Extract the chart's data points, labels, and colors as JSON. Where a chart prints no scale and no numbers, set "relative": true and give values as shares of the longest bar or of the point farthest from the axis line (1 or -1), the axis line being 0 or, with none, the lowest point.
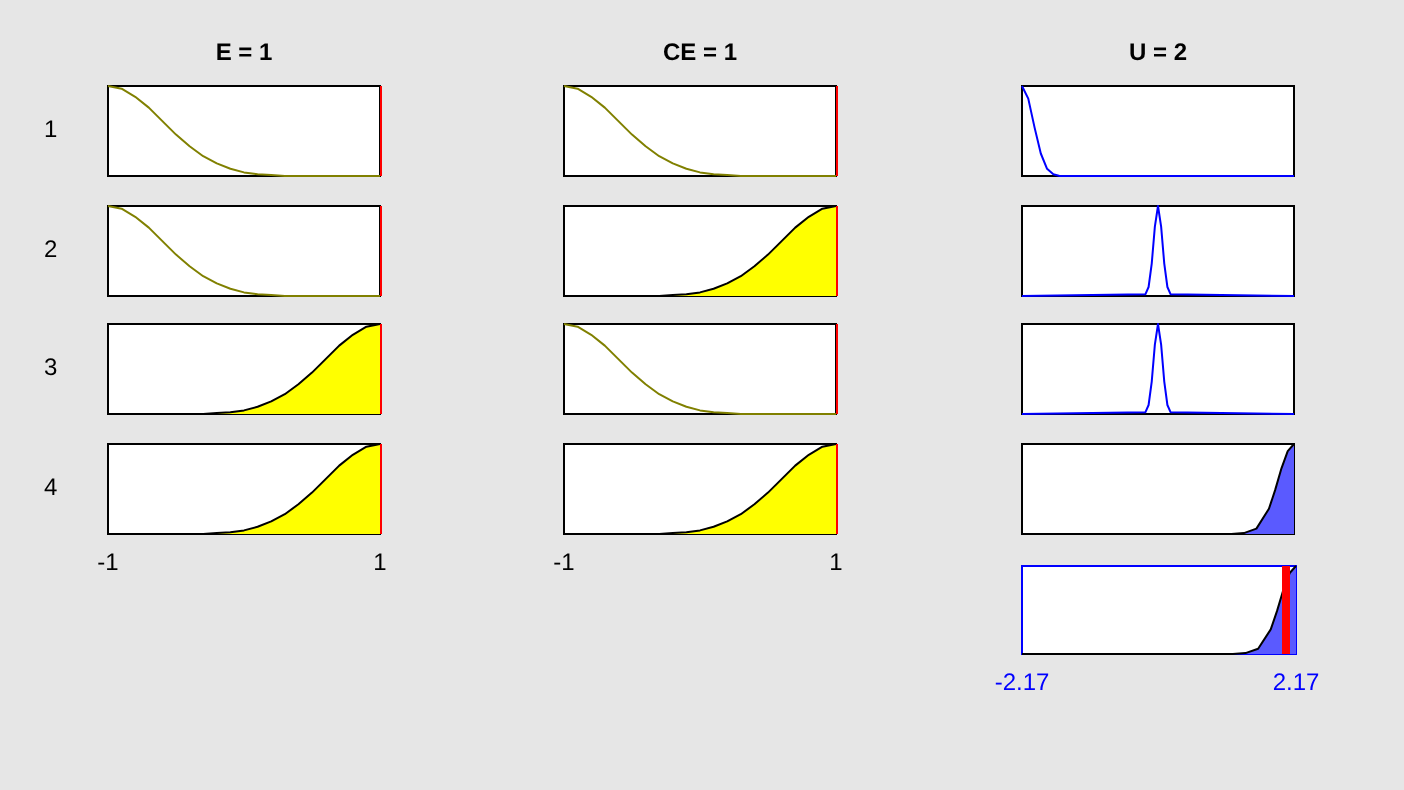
{
  "chart_data": [
    {
      "type": "line",
      "title": "E = 1",
      "ylabel": "1",
      "relative": true,
      "x": [
        -1,
        -0.9,
        -0.8,
        -0.7,
        -0.6,
        -0.5,
        -0.4,
        -0.3,
        -0.2,
        -0.1,
        0,
        0.1,
        0.2,
        0.3,
        0.4,
        0.5,
        0.6,
        0.7,
        0.8,
        0.9,
        1
      ],
      "xlim": [
        -1,
        1
      ],
      "tick_labels": false,
      "ref_lines": [
        {
          "axis": "x",
          "value": 1,
          "color": "#ff0000"
        }
      ],
      "series": [
        {
          "color": "#808000",
          "values": [
            1,
            0.97,
            0.88,
            0.76,
            0.61,
            0.46,
            0.33,
            0.22,
            0.14,
            0.08,
            0.04,
            0.02,
            0.01,
            0,
            0,
            0,
            0,
            0,
            0,
            0,
            0
          ]
        }
      ]
    },
    {
      "type": "line",
      "title": "CE = 1",
      "relative": true,
      "x": [
        -1,
        -0.9,
        -0.8,
        -0.7,
        -0.6,
        -0.5,
        -0.4,
        -0.3,
        -0.2,
        -0.1,
        0,
        0.1,
        0.2,
        0.3,
        0.4,
        0.5,
        0.6,
        0.7,
        0.8,
        0.9,
        1
      ],
      "xlim": [
        -1,
        1
      ],
      "tick_labels": false,
      "ref_lines": [
        {
          "axis": "x",
          "value": 1,
          "color": "#ff0000"
        }
      ],
      "series": [
        {
          "color": "#808000",
          "values": [
            1,
            0.97,
            0.88,
            0.76,
            0.61,
            0.46,
            0.33,
            0.22,
            0.14,
            0.08,
            0.04,
            0.02,
            0.01,
            0,
            0,
            0,
            0,
            0,
            0,
            0,
            0
          ]
        }
      ]
    },
    {
      "type": "line",
      "title": "U = 2",
      "relative": true,
      "x": [
        -2.17,
        -2.07,
        -1.97,
        -1.87,
        -1.77,
        -1.67,
        -1.57,
        2.17
      ],
      "xlim": [
        -2.17,
        2.17
      ],
      "tick_labels": false,
      "series": [
        {
          "color": "#0000ff",
          "values": [
            1,
            0.86,
            0.54,
            0.25,
            0.08,
            0.02,
            0,
            0
          ]
        }
      ]
    },
    {
      "type": "line",
      "ylabel": "2",
      "relative": true,
      "x": [
        -1,
        -0.9,
        -0.8,
        -0.7,
        -0.6,
        -0.5,
        -0.4,
        -0.3,
        -0.2,
        -0.1,
        0,
        0.1,
        0.2,
        0.3,
        0.4,
        0.5,
        0.6,
        0.7,
        0.8,
        0.9,
        1
      ],
      "xlim": [
        -1,
        1
      ],
      "tick_labels": false,
      "ref_lines": [
        {
          "axis": "x",
          "value": 1,
          "color": "#ff0000"
        }
      ],
      "series": [
        {
          "color": "#808000",
          "values": [
            1,
            0.97,
            0.88,
            0.76,
            0.61,
            0.46,
            0.33,
            0.22,
            0.14,
            0.08,
            0.04,
            0.02,
            0.01,
            0,
            0,
            0,
            0,
            0,
            0,
            0,
            0
          ]
        }
      ]
    },
    {
      "type": "area",
      "relative": true,
      "x": [
        -1,
        -0.9,
        -0.8,
        -0.7,
        -0.6,
        -0.5,
        -0.4,
        -0.3,
        -0.2,
        -0.1,
        0,
        0.1,
        0.2,
        0.3,
        0.4,
        0.5,
        0.6,
        0.7,
        0.8,
        0.9,
        1
      ],
      "xlim": [
        -1,
        1
      ],
      "tick_labels": false,
      "ref_lines": [
        {
          "axis": "x",
          "value": 1,
          "color": "#ff0000"
        }
      ],
      "series": [
        {
          "color": "#ffff00",
          "values": [
            0,
            0,
            0,
            0,
            0,
            0,
            0,
            0,
            0.01,
            0.02,
            0.04,
            0.08,
            0.14,
            0.22,
            0.33,
            0.46,
            0.61,
            0.76,
            0.88,
            0.97,
            1
          ]
        }
      ]
    },
    {
      "type": "line",
      "relative": true,
      "x": [
        -2.17,
        -0.2,
        -0.15,
        -0.1,
        -0.05,
        0,
        0.05,
        0.1,
        0.15,
        0.2,
        2.17
      ],
      "xlim": [
        -2.17,
        2.17
      ],
      "tick_labels": false,
      "series": [
        {
          "color": "#0000ff",
          "values": [
            0,
            0.02,
            0.1,
            0.36,
            0.77,
            1,
            0.77,
            0.36,
            0.1,
            0.02,
            0
          ]
        }
      ]
    },
    {
      "type": "area",
      "ylabel": "3",
      "relative": true,
      "x": [
        -1,
        -0.9,
        -0.8,
        -0.7,
        -0.6,
        -0.5,
        -0.4,
        -0.3,
        -0.2,
        -0.1,
        0,
        0.1,
        0.2,
        0.3,
        0.4,
        0.5,
        0.6,
        0.7,
        0.8,
        0.9,
        1
      ],
      "xlim": [
        -1,
        1
      ],
      "tick_labels": false,
      "ref_lines": [
        {
          "axis": "x",
          "value": 1,
          "color": "#ff0000"
        }
      ],
      "series": [
        {
          "color": "#ffff00",
          "values": [
            0,
            0,
            0,
            0,
            0,
            0,
            0,
            0,
            0.01,
            0.02,
            0.04,
            0.08,
            0.14,
            0.22,
            0.33,
            0.46,
            0.61,
            0.76,
            0.88,
            0.97,
            1
          ]
        }
      ]
    },
    {
      "type": "line",
      "relative": true,
      "x": [
        -1,
        -0.9,
        -0.8,
        -0.7,
        -0.6,
        -0.5,
        -0.4,
        -0.3,
        -0.2,
        -0.1,
        0,
        0.1,
        0.2,
        0.3,
        0.4,
        0.5,
        0.6,
        0.7,
        0.8,
        0.9,
        1
      ],
      "xlim": [
        -1,
        1
      ],
      "tick_labels": false,
      "ref_lines": [
        {
          "axis": "x",
          "value": 1,
          "color": "#ff0000"
        }
      ],
      "series": [
        {
          "color": "#808000",
          "values": [
            1,
            0.97,
            0.88,
            0.76,
            0.61,
            0.46,
            0.33,
            0.22,
            0.14,
            0.08,
            0.04,
            0.02,
            0.01,
            0,
            0,
            0,
            0,
            0,
            0,
            0,
            0
          ]
        }
      ]
    },
    {
      "type": "line",
      "relative": true,
      "x": [
        -2.17,
        -0.2,
        -0.15,
        -0.1,
        -0.05,
        0,
        0.05,
        0.1,
        0.15,
        0.2,
        2.17
      ],
      "xlim": [
        -2.17,
        2.17
      ],
      "tick_labels": false,
      "series": [
        {
          "color": "#0000ff",
          "values": [
            0,
            0.02,
            0.1,
            0.36,
            0.77,
            1,
            0.77,
            0.36,
            0.1,
            0.02,
            0
          ]
        }
      ]
    },
    {
      "type": "area",
      "ylabel": "4",
      "relative": true,
      "x": [
        -1,
        -0.9,
        -0.8,
        -0.7,
        -0.6,
        -0.5,
        -0.4,
        -0.3,
        -0.2,
        -0.1,
        0,
        0.1,
        0.2,
        0.3,
        0.4,
        0.5,
        0.6,
        0.7,
        0.8,
        0.9,
        1
      ],
      "xlim": [
        -1,
        1
      ],
      "xticks": [
        -1,
        1
      ],
      "tick_labels": "x",
      "ref_lines": [
        {
          "axis": "x",
          "value": 1,
          "color": "#ff0000"
        }
      ],
      "series": [
        {
          "color": "#ffff00",
          "values": [
            0,
            0,
            0,
            0,
            0,
            0,
            0,
            0,
            0.01,
            0.02,
            0.04,
            0.08,
            0.14,
            0.22,
            0.33,
            0.46,
            0.61,
            0.76,
            0.88,
            0.97,
            1
          ]
        }
      ]
    },
    {
      "type": "area",
      "relative": true,
      "x": [
        -1,
        -0.9,
        -0.8,
        -0.7,
        -0.6,
        -0.5,
        -0.4,
        -0.3,
        -0.2,
        -0.1,
        0,
        0.1,
        0.2,
        0.3,
        0.4,
        0.5,
        0.6,
        0.7,
        0.8,
        0.9,
        1
      ],
      "xlim": [
        -1,
        1
      ],
      "xticks": [
        -1,
        1
      ],
      "tick_labels": "x",
      "ref_lines": [
        {
          "axis": "x",
          "value": 1,
          "color": "#ff0000"
        }
      ],
      "series": [
        {
          "color": "#ffff00",
          "values": [
            0,
            0,
            0,
            0,
            0,
            0,
            0,
            0,
            0.01,
            0.02,
            0.04,
            0.08,
            0.14,
            0.22,
            0.33,
            0.46,
            0.61,
            0.76,
            0.88,
            0.97,
            1
          ]
        }
      ]
    },
    {
      "type": "area",
      "relative": true,
      "x": [
        -2.17,
        1.17,
        1.37,
        1.57,
        1.77,
        1.87,
        1.97,
        2.07,
        2.17
      ],
      "xlim": [
        -2.17,
        2.17
      ],
      "tick_labels": false,
      "series": [
        {
          "color": "#5a5aff",
          "values": [
            0,
            0,
            0.01,
            0.06,
            0.28,
            0.49,
            0.73,
            0.92,
            1
          ]
        }
      ]
    },
    {
      "type": "area",
      "relative": true,
      "x": [
        -2.17,
        1.17,
        1.37,
        1.57,
        1.77,
        1.87,
        1.97,
        2.07,
        2.17
      ],
      "xlim": [
        -2.17,
        2.17
      ],
      "xticks": [
        -2.17,
        2.17
      ],
      "tick_labels": "x",
      "ref_lines": [
        {
          "axis": "x",
          "value": 2,
          "color": "#ff0000"
        }
      ],
      "series": [
        {
          "color": "#5a5aff",
          "values": [
            0,
            0,
            0.01,
            0.06,
            0.28,
            0.49,
            0.73,
            0.92,
            1
          ]
        }
      ]
    }
  ]
}
